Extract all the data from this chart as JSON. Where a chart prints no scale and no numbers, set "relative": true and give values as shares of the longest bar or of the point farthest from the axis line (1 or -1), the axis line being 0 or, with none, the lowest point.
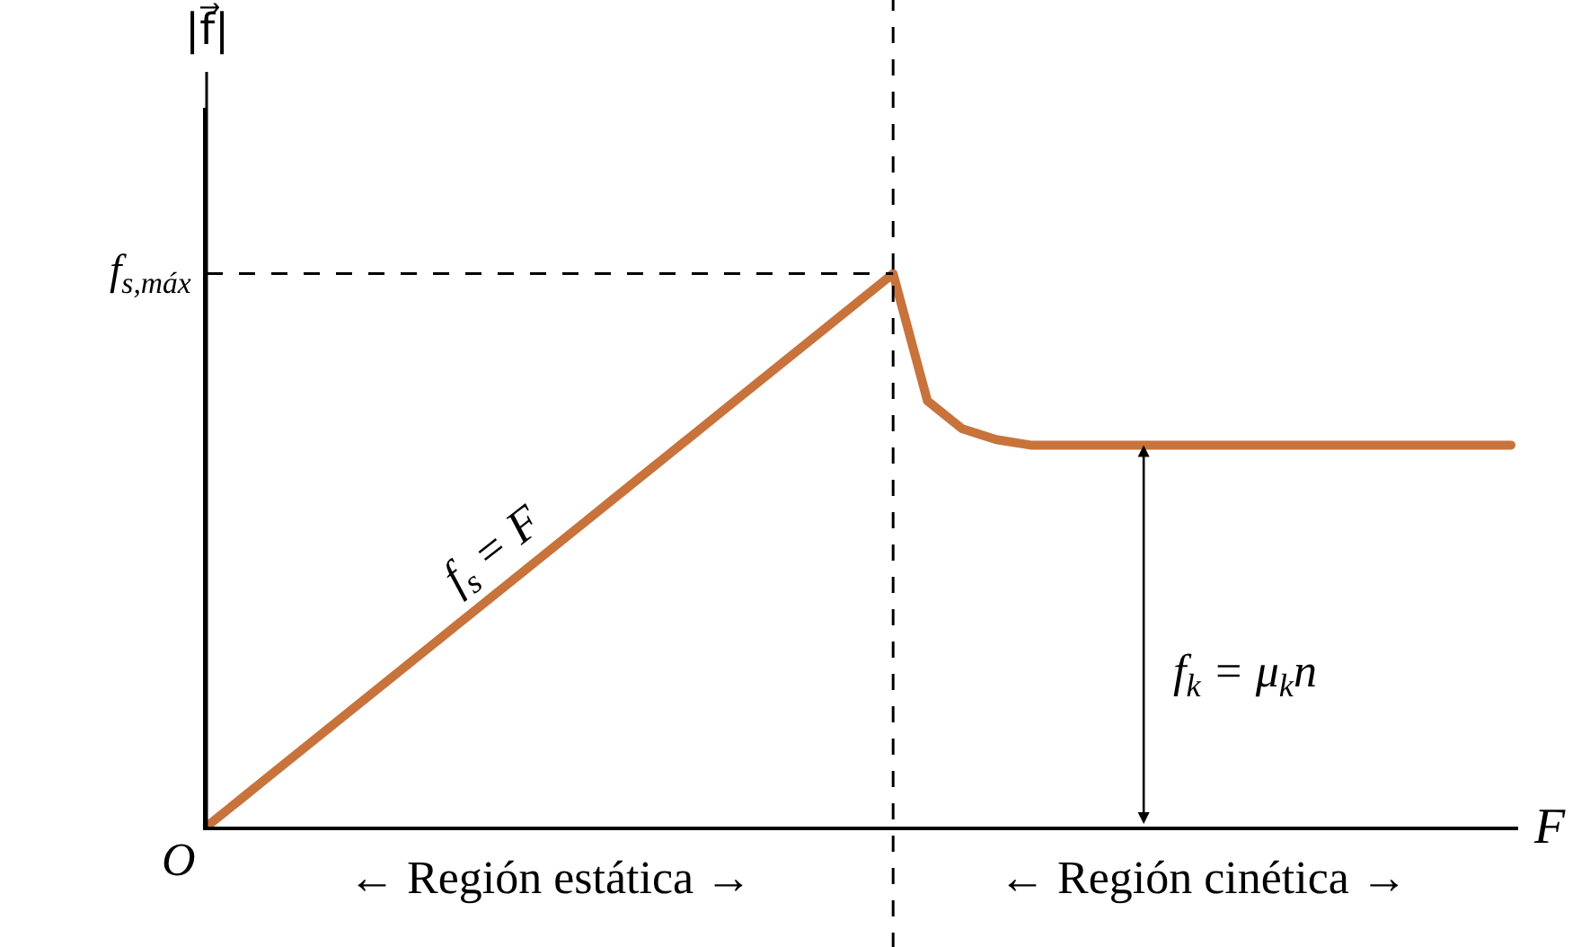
{
  "chart_data": {
    "type": "line",
    "relative": true,
    "xlabel": "F",
    "categories": [
      null,
      null,
      null,
      null,
      null,
      null,
      null,
      null,
      null,
      null,
      null,
      null,
      null,
      null,
      null,
      null,
      null,
      null,
      null,
      null,
      null,
      null,
      null,
      null,
      null,
      null,
      null,
      null,
      null,
      null,
      null,
      null,
      null,
      null,
      null,
      null,
      null,
      null,
      null
    ],
    "series": [
      {
        "color": "#c8733c",
        "values": [
          0,
          0.05,
          0.1,
          0.15,
          0.2,
          0.25,
          0.3,
          0.35,
          0.4,
          0.45,
          0.5,
          0.55,
          0.6,
          0.65,
          0.7,
          0.75,
          0.8,
          0.85,
          0.9,
          0.95,
          1.0,
          0.77,
          0.72,
          0.7,
          0.69,
          0.69,
          0.69,
          0.69,
          0.69,
          0.69,
          0.69,
          0.69,
          0.69,
          0.69,
          0.69,
          0.69,
          0.69,
          0.69,
          0.69
        ]
      }
    ],
    "ref_lines": [
      {
        "axis": "y",
        "value": 1,
        "label": "f$_{s,máx}$",
        "line_style": "dashed",
        "color": "#000000"
      },
      {
        "axis": "x",
        "line_style": "dashed",
        "color": "#000000"
      }
    ],
    "annotations": [
      "O",
      "f$_{s}$ = F",
      "f$_{k}$ = μ$_{k}$n",
      "← Región estática →",
      "← Región cinética →",
      "|f⃗|"
    ],
    "grid": false,
    "marker": "none",
    "line_style": "solid"
  }
}
